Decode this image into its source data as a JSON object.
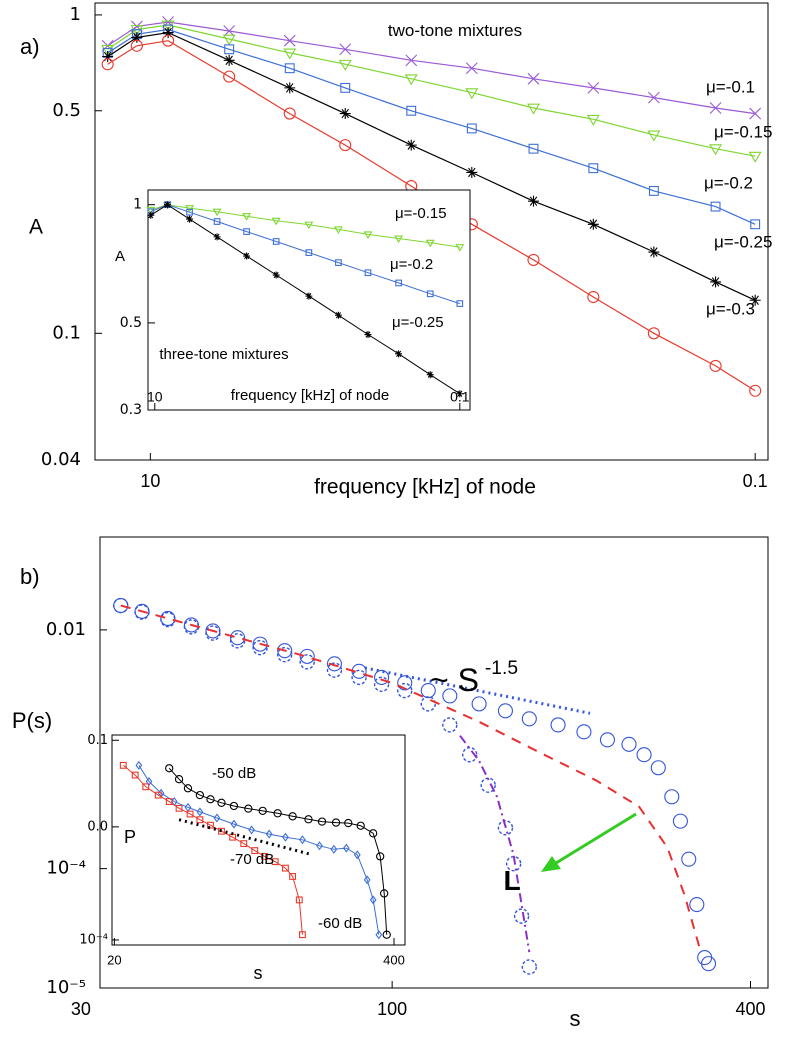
{
  "chart_data": [
    {
      "type": "line",
      "panel_label": "a)",
      "x_label": "frequency [kHz] of node",
      "y_label": "A",
      "log_x": true,
      "log_y": true,
      "grid": false,
      "xlim": [
        0.0081,
        0.105
      ],
      "ylim": [
        0.04,
        1.09
      ],
      "xticks": [
        {
          "value": 0.01,
          "label": "10"
        },
        0.1
      ],
      "yticks": [
        1,
        0.5,
        0.1,
        0.04
      ],
      "annotations": [
        {
          "text": "two-tone mixtures"
        }
      ],
      "x": [
        0.0085,
        0.0095,
        0.0107,
        0.0135,
        0.017,
        0.021,
        0.027,
        0.034,
        0.043,
        0.054,
        0.068,
        0.086,
        0.1
      ],
      "series": [
        {
          "name": "μ=-0.1",
          "color": "#9b5ad6",
          "marker": "x",
          "line": "solid",
          "values": [
            0.8,
            0.92,
            0.95,
            0.89,
            0.83,
            0.78,
            0.72,
            0.68,
            0.63,
            0.59,
            0.55,
            0.51,
            0.49
          ]
        },
        {
          "name": "μ=-0.15",
          "color": "#7ed631",
          "marker": "triangle",
          "line": "solid",
          "values": [
            0.78,
            0.9,
            0.93,
            0.84,
            0.76,
            0.7,
            0.63,
            0.57,
            0.51,
            0.47,
            0.42,
            0.38,
            0.36
          ]
        },
        {
          "name": "μ=-0.2",
          "color": "#3d6fd6",
          "marker": "square",
          "line": "solid",
          "values": [
            0.76,
            0.87,
            0.9,
            0.78,
            0.68,
            0.59,
            0.5,
            0.44,
            0.38,
            0.33,
            0.28,
            0.25,
            0.22
          ]
        },
        {
          "name": "μ=-0.25",
          "color": "#000000",
          "marker": "star",
          "line": "solid",
          "values": [
            0.74,
            0.85,
            0.88,
            0.72,
            0.59,
            0.49,
            0.39,
            0.32,
            0.26,
            0.22,
            0.18,
            0.145,
            0.127
          ]
        },
        {
          "name": "μ=-0.3",
          "color": "#e8392c",
          "marker": "circle",
          "line": "solid",
          "values": [
            0.7,
            0.8,
            0.83,
            0.64,
            0.49,
            0.39,
            0.29,
            0.22,
            0.17,
            0.13,
            0.1,
            0.079,
            0.066
          ]
        }
      ]
    },
    {
      "type": "line",
      "x_label": "frequency [kHz] of node",
      "y_label": "A",
      "log_x": true,
      "log_y": true,
      "grid": false,
      "xlim": [
        0.0095,
        0.108
      ],
      "ylim": [
        0.3,
        1.09
      ],
      "xticks": [
        {
          "value": 0.01,
          "label": "10"
        },
        0.1
      ],
      "yticks": [
        1,
        0.5,
        0.3
      ],
      "annotations": [
        {
          "text": "three-tone mixtures"
        }
      ],
      "x": [
        0.0097,
        0.011,
        0.013,
        0.016,
        0.02,
        0.025,
        0.032,
        0.04,
        0.05,
        0.063,
        0.08,
        0.1
      ],
      "series": [
        {
          "name": "μ=-0.15",
          "color": "#7ed631",
          "marker": "triangle",
          "line": "solid",
          "values": [
            0.97,
            1.0,
            0.98,
            0.96,
            0.935,
            0.91,
            0.89,
            0.865,
            0.84,
            0.82,
            0.8,
            0.78
          ]
        },
        {
          "name": "μ=-0.2",
          "color": "#3d6fd6",
          "marker": "square",
          "line": "solid",
          "values": [
            0.96,
            1.0,
            0.957,
            0.906,
            0.854,
            0.806,
            0.755,
            0.712,
            0.671,
            0.632,
            0.593,
            0.56
          ]
        },
        {
          "name": "μ=-0.25",
          "color": "#000000",
          "marker": "star",
          "line": "solid",
          "values": [
            0.94,
            1.0,
            0.919,
            0.828,
            0.74,
            0.662,
            0.585,
            0.523,
            0.467,
            0.417,
            0.369,
            0.33
          ]
        }
      ]
    },
    {
      "type": "line",
      "panel_label": "b)",
      "x_label": "s",
      "y_label": "P(s)",
      "log_x": true,
      "log_y": true,
      "grid": false,
      "xlim": [
        32.3,
        428
      ],
      "ylim": [
        1e-05,
        0.06
      ],
      "xticks": [
        30,
        100,
        400
      ],
      "yticks": [
        0.01,
        {
          "value": 0.0001,
          "label": "10⁻⁴"
        },
        {
          "value": 1e-05,
          "label": "10⁻⁵"
        }
      ],
      "annotations": [
        {
          "text": "~ S",
          "superscript": "-1.5"
        },
        {
          "text": "L"
        }
      ],
      "series": [
        {
          "color": "#3355dd",
          "marker": "circle",
          "line": "none",
          "x": [
            35,
            38,
            42,
            46,
            50,
            55,
            60,
            66,
            72,
            80,
            88,
            96,
            105,
            115,
            125,
            140,
            155,
            170,
            190,
            210,
            230,
            250,
            265,
            280,
            295,
            305,
            315,
            325,
            335,
            340
          ],
          "values": [
            0.016,
            0.0143,
            0.01246,
            0.011,
            0.0098,
            0.0086,
            0.0076,
            0.0067,
            0.006,
            0.0052,
            0.0045,
            0.004,
            0.0036,
            0.0031,
            0.0028,
            0.0024,
            0.0021,
            0.0018,
            0.0016,
            0.0014,
            0.0012,
            0.0011,
            0.0009,
            0.0007,
            0.0004,
            0.00025,
            0.00012,
            5e-05,
            1.8e-05,
            1.6e-05
          ]
        },
        {
          "color": "#3355dd",
          "marker": "circle",
          "marker_dashed": true,
          "line": "none",
          "x": [
            35,
            38,
            42,
            46,
            50,
            55,
            60,
            66,
            72,
            80,
            88,
            96,
            105,
            115,
            125,
            135,
            145,
            155,
            160,
            165,
            170
          ],
          "values": [
            0.016,
            0.0141,
            0.0122,
            0.0106,
            0.0094,
            0.0081,
            0.0071,
            0.0062,
            0.0054,
            0.0046,
            0.004,
            0.0035,
            0.0031,
            0.0024,
            0.0016,
            0.0009,
            0.0005,
            0.00022,
            0.00011,
            4e-05,
            1.5e-05
          ]
        },
        {
          "color": "#e83030",
          "marker": "none",
          "line": "dashed",
          "x": [
            35,
            50,
            70,
            100,
            140,
            180,
            220,
            260,
            290,
            310,
            330
          ],
          "values": [
            0.016,
            0.0098,
            0.0062,
            0.0036,
            0.0017,
            0.0009,
            0.00055,
            0.00033,
            0.00015,
            6e-05,
            2e-05
          ]
        },
        {
          "color": "#8a2fc9",
          "marker": "none",
          "line": "dashdot",
          "x": [
            130,
            140,
            150,
            160,
            170
          ],
          "values": [
            0.0013,
            0.0008,
            0.0004,
            0.00013,
            2e-05
          ]
        },
        {
          "color": "#3355dd",
          "marker": "none",
          "line": "dotted",
          "x": [
            90,
            215
          ],
          "values": [
            0.0048,
            0.002
          ]
        }
      ]
    },
    {
      "type": "line",
      "x_label": "s",
      "y_label": "P",
      "log_x": true,
      "log_y": true,
      "grid": false,
      "xlim": [
        19.5,
        450
      ],
      "ylim": [
        8.4e-05,
        0.12
      ],
      "xticks": [
        20,
        400
      ],
      "yticks": [
        0.1,
        {
          "value": 0.005,
          "label": "0.0"
        },
        {
          "value": 0.0001,
          "label": "10⁻⁴"
        }
      ],
      "series": [
        {
          "name": "-50 dB",
          "color": "#000000",
          "marker": "circle",
          "line": "solid",
          "x": [
            36,
            40,
            44,
            50,
            56,
            63,
            72,
            84,
            98,
            115,
            135,
            160,
            185,
            215,
            245,
            280,
            320,
            345,
            360,
            370
          ],
          "values": [
            0.038,
            0.026,
            0.019,
            0.015,
            0.013,
            0.0115,
            0.0103,
            0.0094,
            0.0087,
            0.008,
            0.0072,
            0.0065,
            0.006,
            0.0058,
            0.0057,
            0.0052,
            0.004,
            0.0018,
            0.0005,
            0.00012
          ]
        },
        {
          "name": "-60 dB",
          "color": "#3d6fd6",
          "marker": "diamond",
          "line": "solid",
          "x": [
            26,
            29,
            33,
            38,
            44,
            50,
            60,
            72,
            87,
            105,
            125,
            150,
            180,
            210,
            240,
            270,
            300,
            320,
            340
          ],
          "values": [
            0.042,
            0.024,
            0.016,
            0.012,
            0.0098,
            0.0084,
            0.0068,
            0.0055,
            0.0045,
            0.0039,
            0.0035,
            0.0032,
            0.0026,
            0.0023,
            0.0024,
            0.0019,
            0.0008,
            0.0004,
            0.00012
          ]
        },
        {
          "name": "-70 dB",
          "color": "#e8392c",
          "marker": "square",
          "line": "solid",
          "x": [
            22,
            25,
            28,
            32,
            36,
            40,
            45,
            50,
            56,
            63,
            71,
            80,
            90,
            100,
            112,
            125,
            135,
            145,
            150
          ],
          "values": [
            0.042,
            0.03,
            0.02,
            0.015,
            0.012,
            0.0095,
            0.0078,
            0.0064,
            0.0053,
            0.0043,
            0.0035,
            0.0028,
            0.0022,
            0.0018,
            0.0015,
            0.0012,
            0.0009,
            0.0004,
            0.00012
          ]
        },
        {
          "color": "#000000",
          "marker": "none",
          "line": "dotted",
          "x": [
            40,
            167
          ],
          "values": [
            0.0064,
            0.0019
          ]
        }
      ]
    }
  ]
}
